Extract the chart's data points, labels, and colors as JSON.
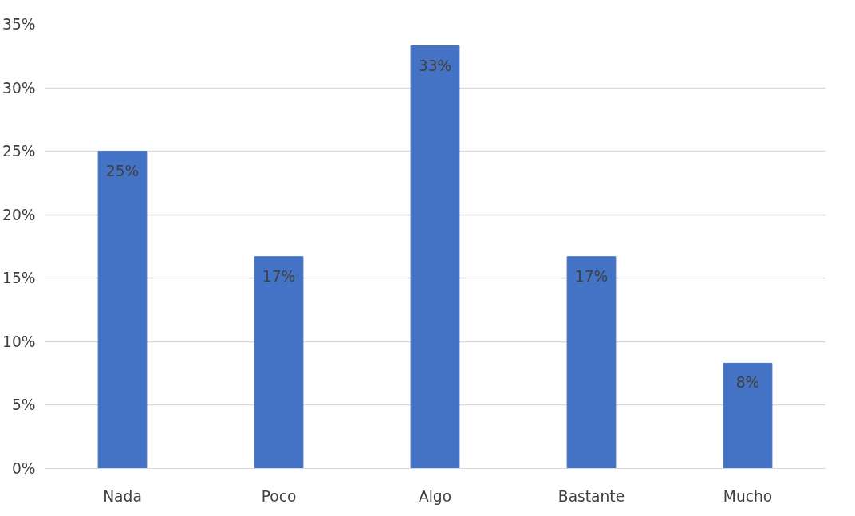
{
  "chart_data": {
    "type": "bar",
    "categories": [
      "Nada",
      "Poco",
      "Algo",
      "Bastante",
      "Mucho"
    ],
    "values": [
      25,
      16.7,
      33.3,
      16.7,
      8.3
    ],
    "value_labels": [
      "25%",
      "17%",
      "33%",
      "17%",
      "8%"
    ],
    "color": "#4472c4",
    "ylim": [
      0,
      35
    ],
    "yticks": [
      {
        "value": 0,
        "label": "0%"
      },
      {
        "value": 5,
        "label": "5%"
      },
      {
        "value": 10,
        "label": "10%"
      },
      {
        "value": 15,
        "label": "15%"
      },
      {
        "value": 20,
        "label": "20%"
      },
      {
        "value": 25,
        "label": "25%"
      },
      {
        "value": 30,
        "label": "30%"
      },
      {
        "value": 35,
        "label": "35%"
      }
    ],
    "grid": "y"
  }
}
